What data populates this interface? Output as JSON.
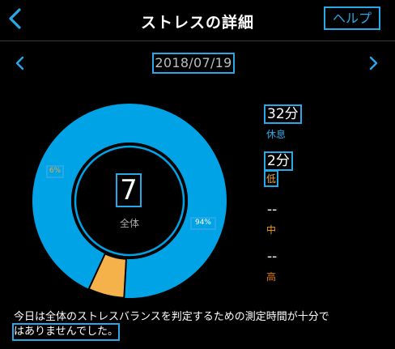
{
  "header": {
    "title": "ストレスの詳細",
    "help_label": "ヘルプ"
  },
  "date_nav": {
    "date": "2018/07/19"
  },
  "center": {
    "value": "7",
    "label": "全体"
  },
  "donut": {
    "segments": [
      {
        "key": "rest",
        "percent_label": "94%",
        "fraction": 0.94,
        "color": "#00a3e6"
      },
      {
        "key": "low",
        "percent_label": "6%",
        "fraction": 0.06,
        "color": "#f6b24a"
      }
    ]
  },
  "legend": {
    "rest": {
      "value": "32分",
      "label": "休息",
      "color": "#29a8e8"
    },
    "low": {
      "value": "2分",
      "label": "低",
      "color": "#f3a640"
    },
    "mid": {
      "value": "--",
      "label": "中",
      "color": "#f39a1f"
    },
    "high": {
      "value": "--",
      "label": "高",
      "color": "#e07a17"
    }
  },
  "message": {
    "line1": "今日は全体のストレスバランスを判定するための測定時間が十分で",
    "line2": "はありませんでした。"
  },
  "colors": {
    "accent": "#29a8e8",
    "background": "#000000",
    "rest": "#00a3e6",
    "low": "#f6b24a"
  }
}
